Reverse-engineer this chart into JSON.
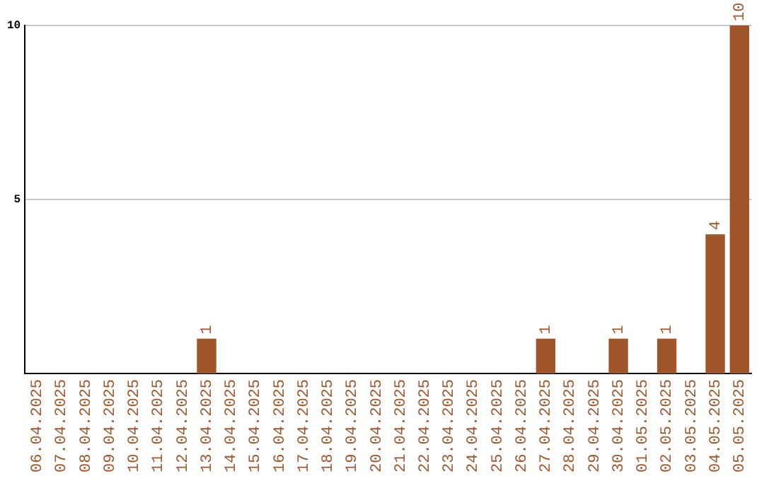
{
  "chart_data": {
    "type": "bar",
    "categories": [
      "06.04.2025",
      "07.04.2025",
      "08.04.2025",
      "09.04.2025",
      "10.04.2025",
      "11.04.2025",
      "12.04.2025",
      "13.04.2025",
      "14.04.2025",
      "15.04.2025",
      "16.04.2025",
      "17.04.2025",
      "18.04.2025",
      "19.04.2025",
      "20.04.2025",
      "21.04.2025",
      "22.04.2025",
      "23.04.2025",
      "24.04.2025",
      "25.04.2025",
      "26.04.2025",
      "27.04.2025",
      "28.04.2025",
      "29.04.2025",
      "30.04.2025",
      "01.05.2025",
      "02.05.2025",
      "03.05.2025",
      "04.05.2025",
      "05.05.2025"
    ],
    "values": [
      0,
      0,
      0,
      0,
      0,
      0,
      0,
      1,
      0,
      0,
      0,
      0,
      0,
      0,
      0,
      0,
      0,
      0,
      0,
      0,
      0,
      1,
      0,
      0,
      1,
      0,
      1,
      0,
      4,
      10
    ],
    "value_labels": [
      null,
      null,
      null,
      null,
      null,
      null,
      null,
      "1",
      null,
      null,
      null,
      null,
      null,
      null,
      null,
      null,
      null,
      null,
      null,
      null,
      null,
      "1",
      null,
      null,
      "1",
      null,
      "1",
      null,
      "4",
      "10"
    ],
    "color": "#a0562a",
    "ylim": [
      0,
      10
    ],
    "yticks": [
      5,
      10
    ],
    "grid": "y",
    "legend": false
  }
}
